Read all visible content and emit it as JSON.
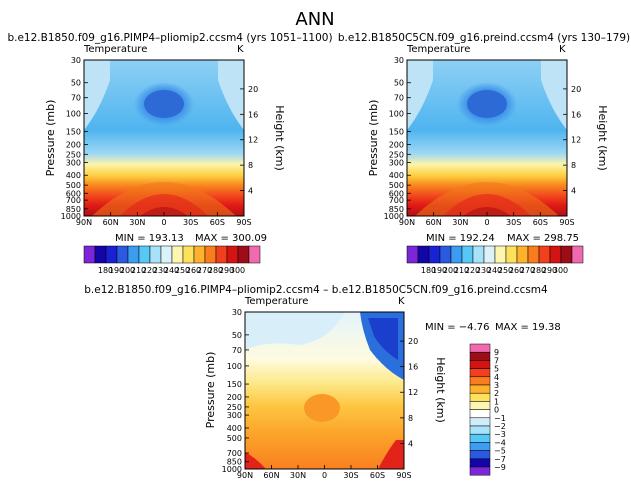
{
  "figure_title": "ANN",
  "chart_data": [
    {
      "type": "contour",
      "title": "b.e12.B1850.f09_g16.PIMP4–pliomip2.ccsm4 (yrs 1051–1100)",
      "variable": "Temperature",
      "units": "K",
      "ylabel": "Pressure (mb)",
      "ylabel2": "Height (km)",
      "x_ticks": [
        "90N",
        "60N",
        "30N",
        "0",
        "30S",
        "60S",
        "90S"
      ],
      "y_ticks": [
        "30",
        "50",
        "70",
        "100",
        "150",
        "200",
        "250",
        "300",
        "400",
        "500",
        "600",
        "700",
        "850",
        "1000"
      ],
      "height_ticks": [
        "20",
        "16",
        "12",
        "8",
        "4"
      ],
      "min": 193.13,
      "max": 300.09,
      "min_text": "MIN = 193.13",
      "max_text": "MAX = 300.09",
      "levels": [
        180,
        190,
        200,
        210,
        220,
        230,
        240,
        250,
        260,
        270,
        280,
        290,
        300
      ]
    },
    {
      "type": "contour",
      "title": "b.e12.B1850C5CN.f09_g16.preind.ccsm4 (yrs 130–179)",
      "variable": "Temperature",
      "units": "K",
      "ylabel": "Pressure (mb)",
      "ylabel2": "Height (km)",
      "x_ticks": [
        "90N",
        "60N",
        "30N",
        "0",
        "30S",
        "60S",
        "90S"
      ],
      "y_ticks": [
        "30",
        "50",
        "70",
        "100",
        "150",
        "200",
        "250",
        "300",
        "400",
        "500",
        "600",
        "700",
        "850",
        "1000"
      ],
      "height_ticks": [
        "20",
        "16",
        "12",
        "8",
        "4"
      ],
      "min": 192.24,
      "max": 298.75,
      "min_text": "MIN = 192.24",
      "max_text": "MAX = 298.75",
      "levels": [
        180,
        190,
        200,
        210,
        220,
        230,
        240,
        250,
        260,
        270,
        280,
        290,
        300
      ]
    },
    {
      "type": "contour",
      "title": "b.e12.B1850.f09_g16.PIMP4–pliomip2.ccsm4 – b.e12.B1850C5CN.f09_g16.preind.ccsm4",
      "variable": "Temperature",
      "units": "K",
      "ylabel": "Pressure (mb)",
      "ylabel2": "Height (km)",
      "x_ticks": [
        "90N",
        "60N",
        "30N",
        "0",
        "30S",
        "60S",
        "90S"
      ],
      "y_ticks": [
        "30",
        "50",
        "70",
        "100",
        "150",
        "200",
        "250",
        "300",
        "400",
        "500",
        "700",
        "850",
        "1000"
      ],
      "height_ticks": [
        "20",
        "16",
        "12",
        "8",
        "4"
      ],
      "min": -4.76,
      "max": 19.38,
      "min_text": "MIN = −4.76",
      "max_text": "MAX = 19.38",
      "levels": [
        9,
        7,
        5,
        4,
        3,
        2,
        1,
        0,
        -1,
        -2,
        -3,
        -4,
        -5,
        -7,
        -9
      ]
    }
  ],
  "colors": {
    "abs_bar": [
      "#7b27d9",
      "#1406a6",
      "#1a20d4",
      "#2a5ae0",
      "#3b9cf0",
      "#55c8f5",
      "#a8e2f8",
      "#dcf2fb",
      "#fdf6b0",
      "#fde15c",
      "#fdb12c",
      "#f97d1e",
      "#f0401e",
      "#d41412",
      "#9e0c18",
      "#f06ab0"
    ],
    "diff_bar": [
      "#f06ab0",
      "#9e0c18",
      "#d41412",
      "#f0401e",
      "#f97d1e",
      "#fdb12c",
      "#fde15c",
      "#fdf6b0",
      "#ffffff",
      "#cfeefb",
      "#a8e2f8",
      "#55c8f5",
      "#3b9cf0",
      "#2a5ae0",
      "#1406a6",
      "#7b27d9"
    ]
  }
}
